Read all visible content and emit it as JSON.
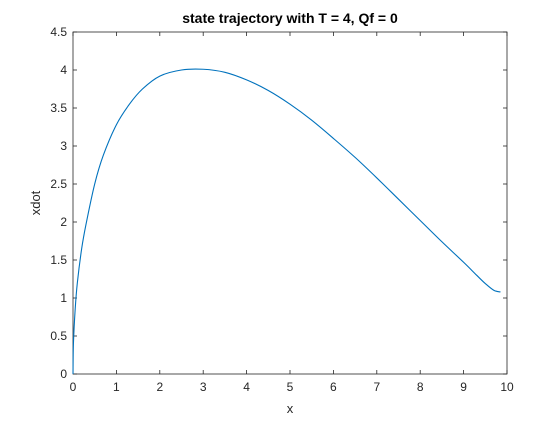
{
  "chart_data": {
    "type": "line",
    "title": "state trajectory with T = 4, Qf = 0",
    "xlabel": "x",
    "ylabel": "xdot",
    "xlim": [
      0,
      10
    ],
    "ylim": [
      0,
      4.5
    ],
    "xticks": [
      "0",
      "1",
      "2",
      "3",
      "4",
      "5",
      "6",
      "7",
      "8",
      "9",
      "10"
    ],
    "yticks": [
      "0",
      "0.5",
      "1",
      "1.5",
      "2",
      "2.5",
      "3",
      "3.5",
      "4",
      "4.5"
    ],
    "grid": false,
    "legend": "none",
    "series": [
      {
        "color": "#0072bd",
        "x": [
          0,
          0.01,
          0.05,
          0.1,
          0.2,
          0.3,
          0.5,
          0.7,
          1.0,
          1.3,
          1.6,
          2.0,
          2.5,
          3.0,
          3.5,
          4.0,
          4.5,
          5.0,
          5.5,
          6.0,
          6.5,
          7.0,
          7.5,
          8.0,
          8.5,
          9.0,
          9.3,
          9.5,
          9.7,
          9.85
        ],
        "y": [
          0,
          0.4,
          0.85,
          1.2,
          1.65,
          1.97,
          2.5,
          2.88,
          3.28,
          3.55,
          3.75,
          3.92,
          4.0,
          4.01,
          3.97,
          3.87,
          3.73,
          3.55,
          3.34,
          3.1,
          2.85,
          2.58,
          2.3,
          2.02,
          1.74,
          1.47,
          1.3,
          1.19,
          1.1,
          1.08
        ]
      }
    ]
  }
}
